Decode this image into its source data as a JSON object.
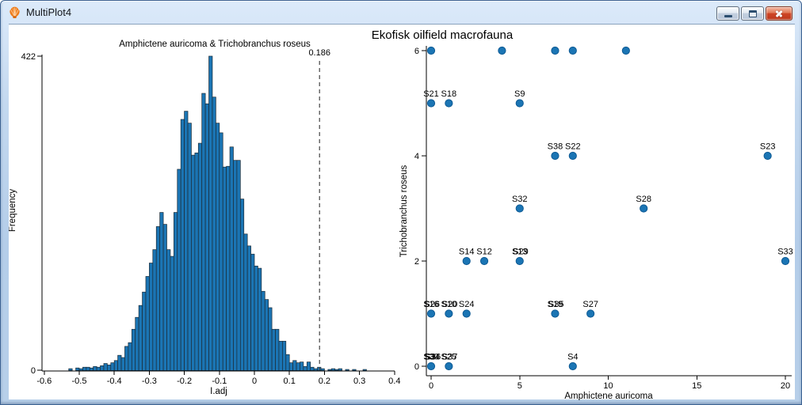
{
  "window": {
    "title": "MultiPlot4",
    "icon": "scallop-shell-icon",
    "controls": [
      {
        "name": "minimize-button",
        "icon": "minimize-icon"
      },
      {
        "name": "maximize-button",
        "icon": "maximize-icon"
      },
      {
        "name": "close-button",
        "icon": "close-icon"
      }
    ]
  },
  "figure_title": "Ekofisk oilfield macrofauna",
  "colors": {
    "bar_fill": "#1b75b4",
    "bar_edge": "#1c2b36",
    "point_fill": "#1b75b4",
    "point_edge": "#0e5a94",
    "axis": "#000000",
    "dashed_line": "#444444"
  },
  "chart_data": [
    {
      "type": "bar",
      "subtype": "histogram",
      "title": "Amphictene auricoma & Trichobranchus roseus",
      "xlabel": "I.adj",
      "ylabel": "Frequency",
      "xlim": [
        -0.6,
        0.4
      ],
      "ylim": [
        0,
        422
      ],
      "xtick_values": [
        -0.6,
        -0.5,
        -0.4,
        -0.3,
        -0.2,
        -0.1,
        0,
        0.1,
        0.2,
        0.3,
        0.4
      ],
      "xtick_labels": [
        "-0.6",
        "-0.5",
        "-0.4",
        "-0.3",
        "-0.2",
        "-0.1",
        "0",
        "0.1",
        "0.2",
        "0.3",
        "0.4"
      ],
      "ytick_values": [
        0,
        422
      ],
      "ytick_labels": [
        "0",
        "422"
      ],
      "bin_width": 0.01,
      "first_bin_center": -0.525,
      "counts": [
        2,
        0,
        3,
        2,
        4,
        4,
        3,
        5,
        4,
        6,
        9,
        7,
        10,
        13,
        20,
        17,
        32,
        37,
        55,
        71,
        87,
        105,
        126,
        144,
        162,
        193,
        212,
        196,
        162,
        153,
        212,
        270,
        337,
        348,
        332,
        289,
        292,
        305,
        372,
        358,
        422,
        367,
        332,
        319,
        273,
        274,
        300,
        282,
        282,
        230,
        183,
        167,
        156,
        140,
        137,
        106,
        95,
        84,
        55,
        55,
        39,
        39,
        21,
        10,
        13,
        10,
        11,
        5,
        11,
        4,
        2,
        4,
        2,
        0,
        1,
        2,
        1,
        2,
        0,
        1,
        0,
        1,
        0,
        0,
        1
      ],
      "vline": {
        "value": 0.186,
        "label": "0.186",
        "style": "dashed"
      }
    },
    {
      "type": "scatter",
      "xlabel": "Amphictene auricoma",
      "ylabel": "Trichobranchus roseus",
      "xlim": [
        0,
        20
      ],
      "ylim": [
        0,
        6
      ],
      "xtick_values": [
        0,
        5,
        10,
        15,
        20
      ],
      "xtick_labels": [
        "0",
        "5",
        "10",
        "15",
        "20"
      ],
      "ytick_values": [
        0,
        2,
        4,
        6
      ],
      "ytick_labels": [
        "0",
        "2",
        "4",
        "6"
      ],
      "points": [
        {
          "x": 0,
          "y": 6,
          "labels": []
        },
        {
          "x": 4,
          "y": 6,
          "labels": []
        },
        {
          "x": 7,
          "y": 6,
          "labels": []
        },
        {
          "x": 8,
          "y": 6,
          "labels": []
        },
        {
          "x": 11,
          "y": 6,
          "labels": []
        },
        {
          "x": 0,
          "y": 5,
          "labels": [
            "S21"
          ]
        },
        {
          "x": 1,
          "y": 5,
          "labels": [
            "S18"
          ]
        },
        {
          "x": 5,
          "y": 5,
          "labels": [
            "S9"
          ]
        },
        {
          "x": 7,
          "y": 4,
          "labels": [
            "S38"
          ]
        },
        {
          "x": 8,
          "y": 4,
          "labels": [
            "S22"
          ]
        },
        {
          "x": 19,
          "y": 4,
          "labels": [
            "S23"
          ]
        },
        {
          "x": 5,
          "y": 3,
          "labels": [
            "S32"
          ]
        },
        {
          "x": 12,
          "y": 3,
          "labels": [
            "S28"
          ]
        },
        {
          "x": 2,
          "y": 2,
          "labels": [
            "S14"
          ]
        },
        {
          "x": 3,
          "y": 2,
          "labels": [
            "S12"
          ]
        },
        {
          "x": 5,
          "y": 2,
          "labels": [
            "S13",
            "S29"
          ]
        },
        {
          "x": 20,
          "y": 2,
          "labels": [
            "S33"
          ]
        },
        {
          "x": 0,
          "y": 1,
          "labels": [
            "S16",
            "S26"
          ]
        },
        {
          "x": 1,
          "y": 1,
          "labels": [
            "S10",
            "S20"
          ]
        },
        {
          "x": 2,
          "y": 1,
          "labels": [
            "S24"
          ]
        },
        {
          "x": 7,
          "y": 1,
          "labels": [
            "S19",
            "S35"
          ]
        },
        {
          "x": 9,
          "y": 1,
          "labels": [
            "S27"
          ]
        },
        {
          "x": 0,
          "y": 0,
          "labels": [
            "S30",
            "S34",
            "S36"
          ]
        },
        {
          "x": 1,
          "y": 0,
          "labels": [
            "S25",
            "S37"
          ]
        },
        {
          "x": 8,
          "y": 0,
          "labels": [
            "S4"
          ]
        }
      ]
    }
  ]
}
